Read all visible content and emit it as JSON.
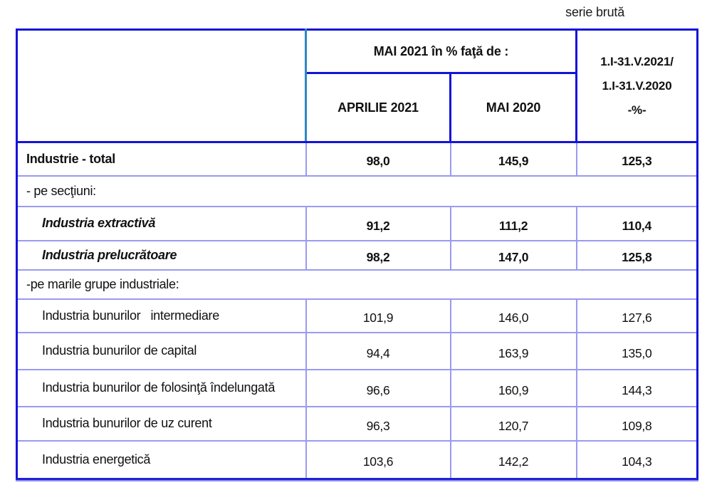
{
  "annotation": "serie brută",
  "table": {
    "header": {
      "group_title": "MAI 2021 în % faţă de :",
      "sub_columns": [
        "APRILIE 2021",
        "MAI 2020"
      ],
      "cumulative_column": [
        "1.I-31.V.2021/",
        "1.I-31.V.2020",
        "-%-"
      ]
    },
    "rows": [
      {
        "type": "total",
        "label": "Industrie - total",
        "values": [
          "98,0",
          "145,9",
          "125,3"
        ]
      },
      {
        "type": "section",
        "label": "- pe secţiuni:",
        "values": []
      },
      {
        "type": "subsection",
        "label": "Industria extractivă",
        "values": [
          "91,2",
          "111,2",
          "110,4"
        ]
      },
      {
        "type": "subsection",
        "label": "Industria prelucrătoare",
        "values": [
          "98,2",
          "147,0",
          "125,8"
        ]
      },
      {
        "type": "section",
        "label": "-pe marile grupe industriale:",
        "values": []
      },
      {
        "type": "group",
        "label": "Industria bunurilor   intermediare",
        "values": [
          "101,9",
          "146,0",
          "127,6"
        ]
      },
      {
        "type": "group",
        "label": "Industria bunurilor de capital",
        "values": [
          "94,4",
          "163,9",
          "135,0"
        ]
      },
      {
        "type": "group",
        "label": "Industria bunurilor de folosinţă îndelungată",
        "values": [
          "96,6",
          "160,9",
          "144,3"
        ]
      },
      {
        "type": "group",
        "label": "Industria bunurilor de uz curent",
        "values": [
          "96,3",
          "120,7",
          "109,8"
        ]
      },
      {
        "type": "group",
        "label": "Industria energetică",
        "values": [
          "103,6",
          "142,2",
          "104,3"
        ]
      }
    ]
  },
  "colors": {
    "outer_border_blue": "#1414d8",
    "inner_grid_purple": "#9a9af2",
    "header_divider_teal": "#2e86c8",
    "text": "#111111"
  }
}
